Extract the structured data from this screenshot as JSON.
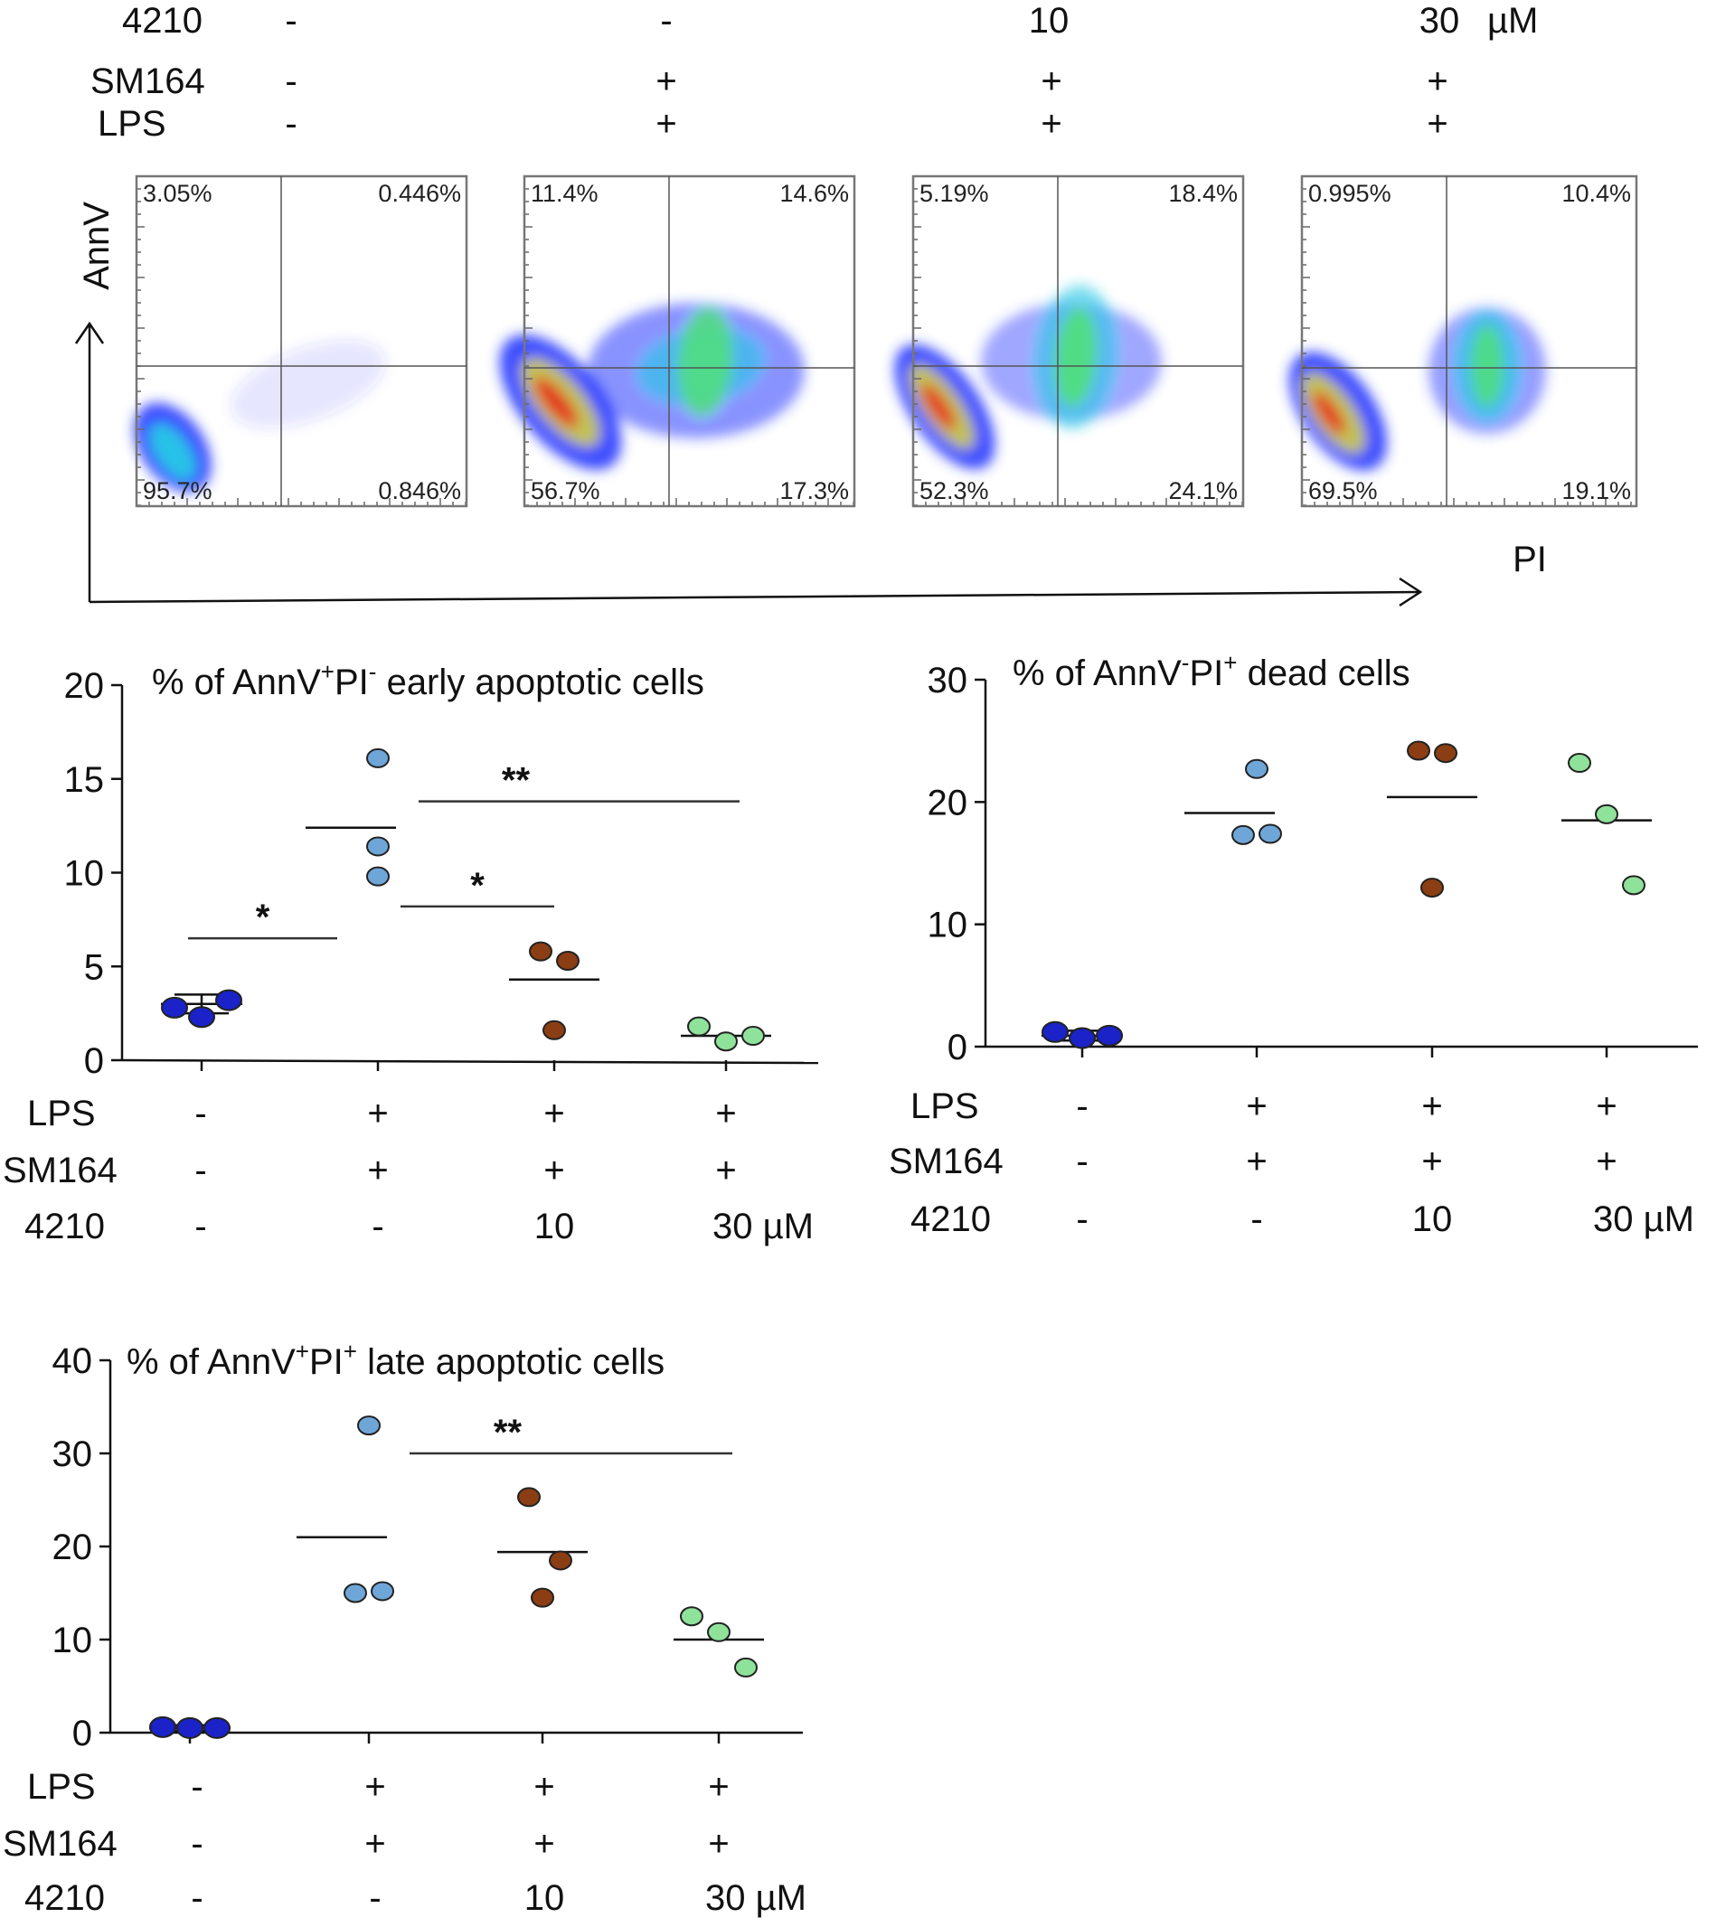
{
  "header_conditions": {
    "rows": [
      {
        "label": "4210",
        "values": [
          "-",
          "-",
          "10",
          "30"
        ],
        "unit": "µM"
      },
      {
        "label": "SM164",
        "values": [
          "-",
          "+",
          "+",
          "+"
        ],
        "unit": ""
      },
      {
        "label": "LPS",
        "values": [
          "-",
          "+",
          "+",
          "+"
        ],
        "unit": ""
      }
    ]
  },
  "flow_plots": {
    "x_axis_label": "PI",
    "y_axis_label": "AnnV",
    "panels": [
      {
        "name": "control",
        "quadrants": {
          "upper_left": "3.05%",
          "upper_right": "0.446%",
          "lower_left": "95.7%",
          "lower_right": "0.846%"
        }
      },
      {
        "name": "lps-sm164",
        "quadrants": {
          "upper_left": "11.4%",
          "upper_right": "14.6%",
          "lower_left": "56.7%",
          "lower_right": "17.3%"
        }
      },
      {
        "name": "4210-10uM",
        "quadrants": {
          "upper_left": "5.19%",
          "upper_right": "18.4%",
          "lower_left": "52.3%",
          "lower_right": "24.1%"
        }
      },
      {
        "name": "4210-30uM",
        "quadrants": {
          "upper_left": "0.995%",
          "upper_right": "10.4%",
          "lower_left": "69.5%",
          "lower_right": "19.1%"
        }
      }
    ]
  },
  "colors": {
    "control": "#1a22c8",
    "lps_sm164": "#6fa6d8",
    "dose_10": "#8b3e13",
    "dose_30": "#8fe29a",
    "flow_blue": "#2a3cff",
    "flow_cyan": "#26c9e6",
    "flow_green": "#4fe07a",
    "flow_yellow": "#e4e02a",
    "flow_red": "#e8281e"
  },
  "chart_data": [
    {
      "id": "early",
      "type": "scatter",
      "title_parts": [
        "% of AnnV",
        "+",
        "PI",
        "-",
        " early apoptotic cells"
      ],
      "ylim": [
        0,
        20
      ],
      "yticks": [
        "0",
        "5",
        "10",
        "15",
        "20"
      ],
      "ytick_values": [
        0,
        5,
        10,
        15,
        20
      ],
      "categories": [
        "control",
        "LPS+SM164",
        "4210 10",
        "4210 30"
      ],
      "series": [
        {
          "name": "control",
          "values": [
            2.8,
            2.3,
            3.2
          ],
          "mean": 3.0,
          "sd": 0.5
        },
        {
          "name": "LPS+SM164",
          "values": [
            16.1,
            11.4,
            9.8
          ],
          "mean": 12.4
        },
        {
          "name": "4210 10 µM",
          "values": [
            5.8,
            5.3,
            1.6
          ],
          "mean": 4.3
        },
        {
          "name": "4210 30 µM",
          "values": [
            1.8,
            1.0,
            1.3
          ],
          "mean": 1.3
        }
      ],
      "significance": [
        {
          "from": 0,
          "to": 1,
          "level": 6.5,
          "label": "*"
        },
        {
          "from": 1,
          "to": 2,
          "level": 8.2,
          "label": "*"
        },
        {
          "from": 1,
          "to": 3,
          "level": 13.8,
          "label": "**"
        }
      ],
      "condition_rows": [
        {
          "label": "LPS",
          "values": [
            "-",
            "+",
            "+",
            "+"
          ]
        },
        {
          "label": "SM164",
          "values": [
            "-",
            "+",
            "+",
            "+"
          ]
        },
        {
          "label": "4210",
          "values": [
            "-",
            "-",
            "10",
            "30 µM"
          ]
        }
      ]
    },
    {
      "id": "dead",
      "type": "scatter",
      "title_parts": [
        "% of AnnV",
        "-",
        "PI",
        "+",
        " dead cells"
      ],
      "ylim": [
        0,
        30
      ],
      "yticks": [
        "0",
        "10",
        "20",
        "30"
      ],
      "ytick_values": [
        0,
        10,
        20,
        30
      ],
      "categories": [
        "control",
        "LPS+SM164",
        "4210 10",
        "4210 30"
      ],
      "series": [
        {
          "name": "control",
          "values": [
            1.2,
            0.7,
            0.9
          ],
          "mean": 0.9,
          "sd": 0.4
        },
        {
          "name": "LPS+SM164",
          "values": [
            22.7,
            17.3,
            17.4
          ],
          "mean": 19.1
        },
        {
          "name": "4210 10 µM",
          "values": [
            24.2,
            24.0,
            13.0
          ],
          "mean": 20.4
        },
        {
          "name": "4210 30 µM",
          "values": [
            23.2,
            19.0,
            13.2
          ],
          "mean": 18.5
        }
      ],
      "significance": [],
      "condition_rows": [
        {
          "label": "LPS",
          "values": [
            "-",
            "+",
            "+",
            "+"
          ]
        },
        {
          "label": "SM164",
          "values": [
            "-",
            "+",
            "+",
            "+"
          ]
        },
        {
          "label": "4210",
          "values": [
            "-",
            "-",
            "10",
            "30 µM"
          ]
        }
      ]
    },
    {
      "id": "late",
      "type": "scatter",
      "title_parts": [
        "% of AnnV",
        "+",
        "PI",
        "+",
        " late apoptotic cells"
      ],
      "ylim": [
        0,
        40
      ],
      "yticks": [
        "0",
        "10",
        "20",
        "30",
        "40"
      ],
      "ytick_values": [
        0,
        10,
        20,
        30,
        40
      ],
      "categories": [
        "control",
        "LPS+SM164",
        "4210 10",
        "4210 30"
      ],
      "series": [
        {
          "name": "control",
          "values": [
            0.6,
            0.5,
            0.5
          ],
          "mean": 0.5,
          "sd": 0.3
        },
        {
          "name": "LPS+SM164",
          "values": [
            33.0,
            15.0,
            15.2
          ],
          "mean": 21.0
        },
        {
          "name": "4210 10 µM",
          "values": [
            25.3,
            18.5,
            14.5
          ],
          "mean": 19.4
        },
        {
          "name": "4210 30 µM",
          "values": [
            12.5,
            10.8,
            7.0
          ],
          "mean": 10.0
        }
      ],
      "significance": [
        {
          "from": 1,
          "to": 3,
          "level": 30.0,
          "label": "**"
        }
      ],
      "condition_rows": [
        {
          "label": "LPS",
          "values": [
            "-",
            "+",
            "+",
            "+"
          ]
        },
        {
          "label": "SM164",
          "values": [
            "-",
            "+",
            "+",
            "+"
          ]
        },
        {
          "label": "4210",
          "values": [
            "-",
            "-",
            "10",
            "30 µM"
          ]
        }
      ]
    }
  ]
}
